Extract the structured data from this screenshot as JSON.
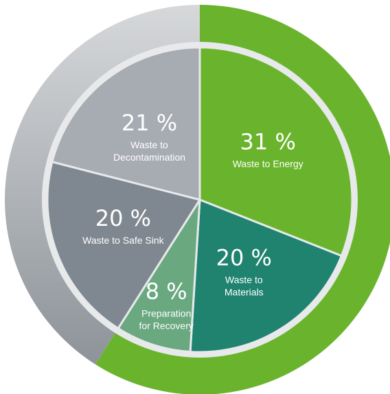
{
  "chart_data": {
    "type": "pie",
    "categories": [
      "Waste to Energy",
      "Waste to Materials",
      "Preparation for Recovery",
      "Waste to Safe Sink",
      "Waste to Decontamination"
    ],
    "values": [
      31,
      20,
      8,
      20,
      21
    ],
    "slices": [
      {
        "percent_text": "31 %",
        "label_lines": [
          "Waste to Energy"
        ],
        "color": "#6ab42d"
      },
      {
        "percent_text": "20 %",
        "label_lines": [
          "Waste to",
          "Materials"
        ],
        "color": "#1f836f"
      },
      {
        "percent_text": "8 %",
        "label_lines": [
          "Preparation",
          "for Recovery"
        ],
        "color": "#6aa880"
      },
      {
        "percent_text": "20 %",
        "label_lines": [
          "Waste to Safe Sink"
        ],
        "color": "#7f8891"
      },
      {
        "percent_text": "21 %",
        "label_lines": [
          "Waste to",
          "Decontamination"
        ],
        "color": "#a7abb2"
      }
    ],
    "outer_ring": [
      {
        "share": 59,
        "color": "#6ab42d"
      },
      {
        "share": 41,
        "color": "#9ea3a9"
      }
    ],
    "separator_color": "#e7e9ea"
  }
}
